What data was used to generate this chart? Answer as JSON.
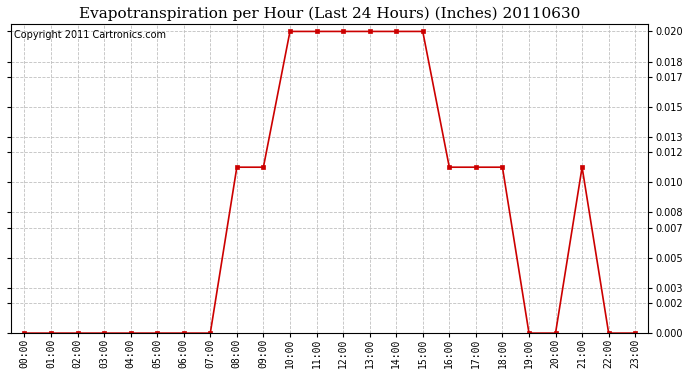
{
  "title": "Evapotranspiration per Hour (Last 24 Hours) (Inches) 20110630",
  "copyright": "Copyright 2011 Cartronics.com",
  "x_labels": [
    "00:00",
    "01:00",
    "02:00",
    "03:00",
    "04:00",
    "05:00",
    "06:00",
    "07:00",
    "08:00",
    "09:00",
    "10:00",
    "11:00",
    "12:00",
    "13:00",
    "14:00",
    "15:00",
    "16:00",
    "17:00",
    "18:00",
    "19:00",
    "20:00",
    "21:00",
    "22:00",
    "23:00"
  ],
  "y_values": [
    0.0,
    0.0,
    0.0,
    0.0,
    0.0,
    0.0,
    0.0,
    0.0,
    0.011,
    0.011,
    0.02,
    0.02,
    0.02,
    0.02,
    0.02,
    0.02,
    0.011,
    0.011,
    0.011,
    0.0,
    0.0,
    0.011,
    0.0,
    0.0
  ],
  "line_color": "#cc0000",
  "marker": "s",
  "marker_size": 3,
  "background_color": "#ffffff",
  "grid_color": "#c0c0c0",
  "y_tick_values": [
    0.0,
    0.002,
    0.003,
    0.005,
    0.007,
    0.008,
    0.01,
    0.012,
    0.013,
    0.015,
    0.017,
    0.018,
    0.02
  ],
  "ylim": [
    0.0,
    0.0205
  ],
  "title_fontsize": 11,
  "copyright_fontsize": 7,
  "tick_fontsize": 7,
  "ytick_fontsize": 7
}
